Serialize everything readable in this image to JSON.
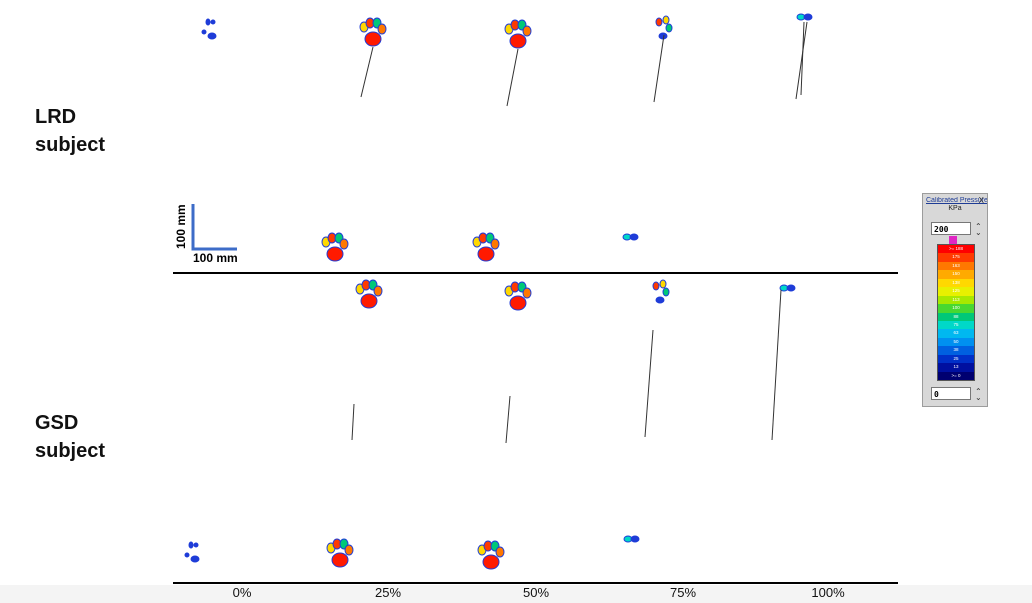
{
  "rows": [
    {
      "label_line1": "LRD",
      "label_line2": "subject"
    },
    {
      "label_line1": "GSD",
      "label_line2": "subject"
    }
  ],
  "scale_bar": {
    "vertical": "100 mm",
    "horizontal": "100 mm"
  },
  "x_axis_labels": [
    "0%",
    "25%",
    "50%",
    "75%",
    "100%"
  ],
  "legend": {
    "title": "Calibrated Pressure",
    "close": "X",
    "unit": "KPa",
    "max_value": "200",
    "min_value": "0",
    "levels": [
      ">= 188",
      "175",
      "163",
      "150",
      "138",
      "125",
      "113",
      "100",
      "88",
      "75",
      "63",
      "50",
      "38",
      "25",
      "13",
      ">= 0"
    ],
    "colors": [
      "#ff0000",
      "#ff3a00",
      "#ff7800",
      "#ffaa00",
      "#ffd800",
      "#e8f000",
      "#a8e800",
      "#48d830",
      "#00c878",
      "#00d8c8",
      "#00b8f0",
      "#0090f0",
      "#0060e0",
      "#0030c8",
      "#0010a0",
      "#000070"
    ]
  },
  "colors": {
    "axis_line": "#000000",
    "scale_bar": "#3d6cc8",
    "paw_low": "#1e3cd8",
    "paw_high": "#ff1a00"
  }
}
